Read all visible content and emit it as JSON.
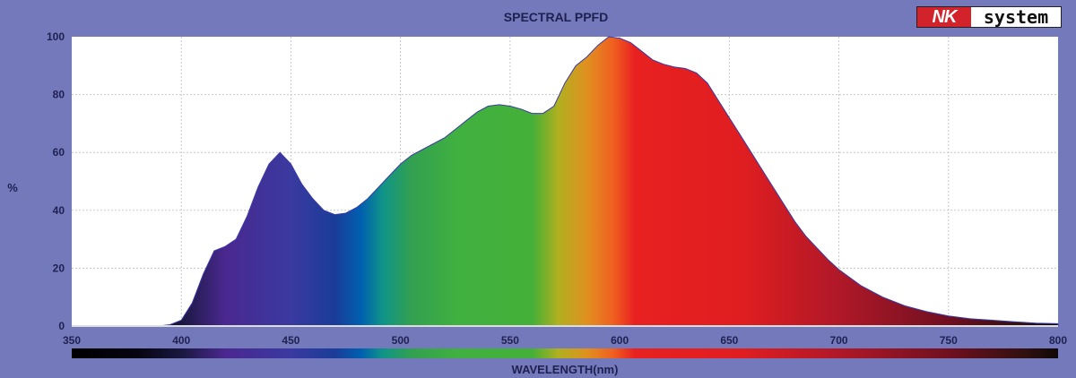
{
  "logo": {
    "brand_a": "NK",
    "brand_b": "system"
  },
  "chart_data": {
    "type": "area",
    "title": "SPECTRAL PPFD",
    "xlabel": "WAVELENGTH(nm)",
    "ylabel": "%",
    "xlim": [
      350,
      800
    ],
    "ylim": [
      0,
      100
    ],
    "xticks": [
      350,
      400,
      450,
      500,
      550,
      600,
      650,
      700,
      750,
      800
    ],
    "yticks": [
      0,
      20,
      40,
      60,
      80,
      100
    ],
    "grid": true,
    "x": [
      390,
      395,
      400,
      405,
      410,
      415,
      420,
      425,
      430,
      435,
      440,
      445,
      450,
      455,
      460,
      465,
      470,
      475,
      480,
      485,
      490,
      495,
      500,
      505,
      510,
      515,
      520,
      525,
      530,
      535,
      540,
      545,
      550,
      555,
      560,
      565,
      570,
      575,
      580,
      585,
      590,
      595,
      600,
      605,
      610,
      615,
      620,
      625,
      630,
      635,
      640,
      645,
      650,
      655,
      660,
      665,
      670,
      675,
      680,
      685,
      690,
      695,
      700,
      710,
      720,
      730,
      740,
      750,
      760,
      770,
      780,
      790,
      800
    ],
    "y": [
      0,
      0.5,
      2,
      8,
      18,
      26,
      27.5,
      30,
      38,
      48,
      56,
      60,
      56,
      49,
      44,
      40,
      38.5,
      39,
      41,
      44,
      48,
      52,
      56,
      59,
      61,
      63,
      65,
      68,
      71,
      74,
      76,
      76.5,
      76,
      75,
      73.5,
      73.5,
      76,
      84,
      90,
      93,
      97,
      100,
      99.5,
      98,
      95,
      92,
      90.5,
      89.5,
      89,
      87.5,
      84,
      78,
      72,
      66,
      60,
      54,
      48,
      42,
      36,
      31,
      27,
      23,
      19.5,
      14,
      10,
      7,
      5,
      3.5,
      2.5,
      2,
      1.5,
      1,
      0.8
    ]
  },
  "colors": {
    "spectrum": [
      [
        350,
        "#000000"
      ],
      [
        380,
        "#050510"
      ],
      [
        400,
        "#1a1840"
      ],
      [
        420,
        "#4a2890"
      ],
      [
        450,
        "#3a3aa0"
      ],
      [
        470,
        "#1a3c98"
      ],
      [
        482,
        "#0060b0"
      ],
      [
        492,
        "#109488"
      ],
      [
        505,
        "#32a050"
      ],
      [
        525,
        "#40b040"
      ],
      [
        560,
        "#44b038"
      ],
      [
        572,
        "#b0b020"
      ],
      [
        585,
        "#e09020"
      ],
      [
        597,
        "#f06020"
      ],
      [
        607,
        "#e82020"
      ],
      [
        655,
        "#e01e20"
      ],
      [
        700,
        "#b01828"
      ],
      [
        750,
        "#701020"
      ],
      [
        785,
        "#301010"
      ],
      [
        800,
        "#100808"
      ]
    ]
  }
}
